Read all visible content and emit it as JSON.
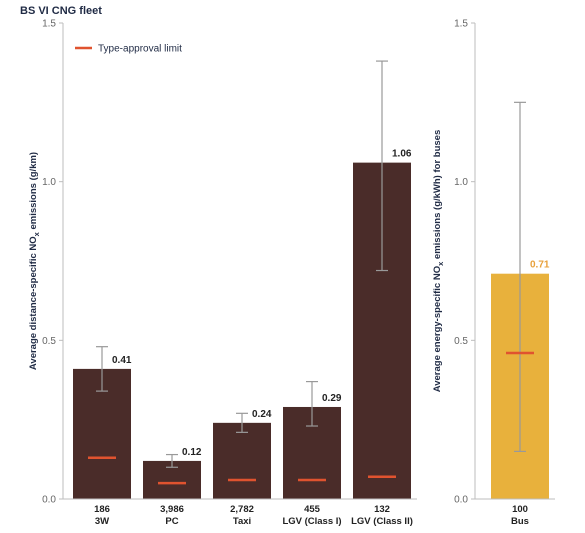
{
  "title": "BS VI CNG fleet",
  "legend": {
    "label": "Type-approval limit",
    "color": "#e0532f"
  },
  "colors": {
    "left_bar": "#4a2c29",
    "right_bar": "#e8b13c",
    "right_label": "#e8a13c",
    "whisker": "#999999",
    "limit": "#e0532f"
  },
  "chart_data": [
    {
      "type": "bar",
      "ylabel_pre": "Average distance-specific NO",
      "ylabel_sub": "x",
      "ylabel_post": " emissions (g/km)",
      "ylim": [
        0,
        1.5
      ],
      "yticks": [
        "0.0",
        "0.5",
        "1.0",
        "1.5"
      ],
      "grid": false,
      "categories": [
        {
          "count": "186",
          "name": "3W"
        },
        {
          "count": "3,986",
          "name": "PC"
        },
        {
          "count": "2,782",
          "name": "Taxi"
        },
        {
          "count": "455",
          "name": "LGV (Class I)"
        },
        {
          "count": "132",
          "name": "LGV (Class II)"
        }
      ],
      "values": [
        0.41,
        0.12,
        0.24,
        0.29,
        1.06
      ],
      "value_labels": [
        "0.41",
        "0.12",
        "0.24",
        "0.29",
        "1.06"
      ],
      "error_low": [
        0.34,
        0.1,
        0.21,
        0.23,
        0.72
      ],
      "error_high": [
        0.48,
        0.14,
        0.27,
        0.37,
        1.38
      ],
      "type_approval_limit": [
        0.13,
        0.05,
        0.06,
        0.06,
        0.07
      ]
    },
    {
      "type": "bar",
      "ylabel_pre": "Average energy-specific NO",
      "ylabel_sub": "x",
      "ylabel_post": " emissions (g/kWh) for buses",
      "ylim": [
        0,
        1.5
      ],
      "yticks": [
        "0.0",
        "0.5",
        "1.0",
        "1.5"
      ],
      "grid": false,
      "categories": [
        {
          "count": "100",
          "name": "Bus"
        }
      ],
      "values": [
        0.71
      ],
      "value_labels": [
        "0.71"
      ],
      "error_low": [
        0.15
      ],
      "error_high": [
        1.25
      ],
      "type_approval_limit": [
        0.46
      ]
    }
  ]
}
